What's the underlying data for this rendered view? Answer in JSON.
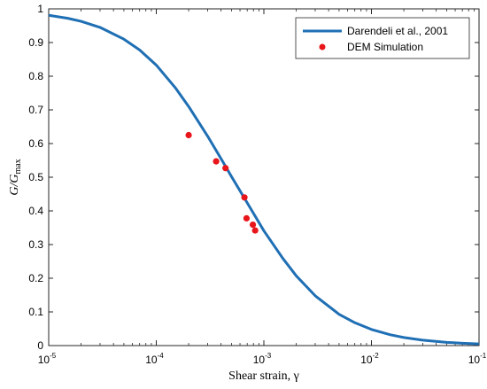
{
  "chart_data": {
    "type": "line",
    "title": "",
    "xlabel": "Shear strain, γ",
    "ylabel": "G/G",
    "ylabel_subscript": "max",
    "xscale": "log",
    "xlim": [
      1e-05,
      0.1
    ],
    "ylim": [
      0,
      1
    ],
    "x_tick_labels": [
      {
        "base": "10",
        "exp": "-5"
      },
      {
        "base": "10",
        "exp": "-4"
      },
      {
        "base": "10",
        "exp": "-3"
      },
      {
        "base": "10",
        "exp": "-2"
      },
      {
        "base": "10",
        "exp": "-1"
      }
    ],
    "y_tick_labels": [
      "0",
      "0.1",
      "0.2",
      "0.3",
      "0.4",
      "0.5",
      "0.6",
      "0.7",
      "0.8",
      "0.9",
      "1"
    ],
    "grid": false,
    "legend_position": "top-right",
    "series": [
      {
        "name": "Darendeli et al., 2001",
        "kind": "line",
        "color": "#1f6fb4",
        "x": [
          1e-05,
          1.5e-05,
          2e-05,
          3e-05,
          5e-05,
          7e-05,
          0.0001,
          0.00015,
          0.0002,
          0.0003,
          0.0004,
          0.0005,
          0.0007,
          0.001,
          0.0015,
          0.002,
          0.003,
          0.005,
          0.007,
          0.01,
          0.015,
          0.02,
          0.03,
          0.05,
          0.07,
          0.1
        ],
        "y": [
          0.981,
          0.972,
          0.963,
          0.945,
          0.91,
          0.878,
          0.833,
          0.766,
          0.71,
          0.622,
          0.555,
          0.502,
          0.424,
          0.341,
          0.259,
          0.207,
          0.148,
          0.093,
          0.068,
          0.048,
          0.032,
          0.024,
          0.016,
          0.0096,
          0.0069,
          0.0048
        ]
      },
      {
        "name": "DEM Simulation",
        "kind": "scatter",
        "color": "#e8151b",
        "x": [
          0.0002,
          0.00036,
          0.00044,
          0.00066,
          0.00069,
          0.00079,
          0.00083
        ],
        "y": [
          0.625,
          0.547,
          0.527,
          0.44,
          0.378,
          0.359,
          0.342
        ]
      }
    ]
  }
}
